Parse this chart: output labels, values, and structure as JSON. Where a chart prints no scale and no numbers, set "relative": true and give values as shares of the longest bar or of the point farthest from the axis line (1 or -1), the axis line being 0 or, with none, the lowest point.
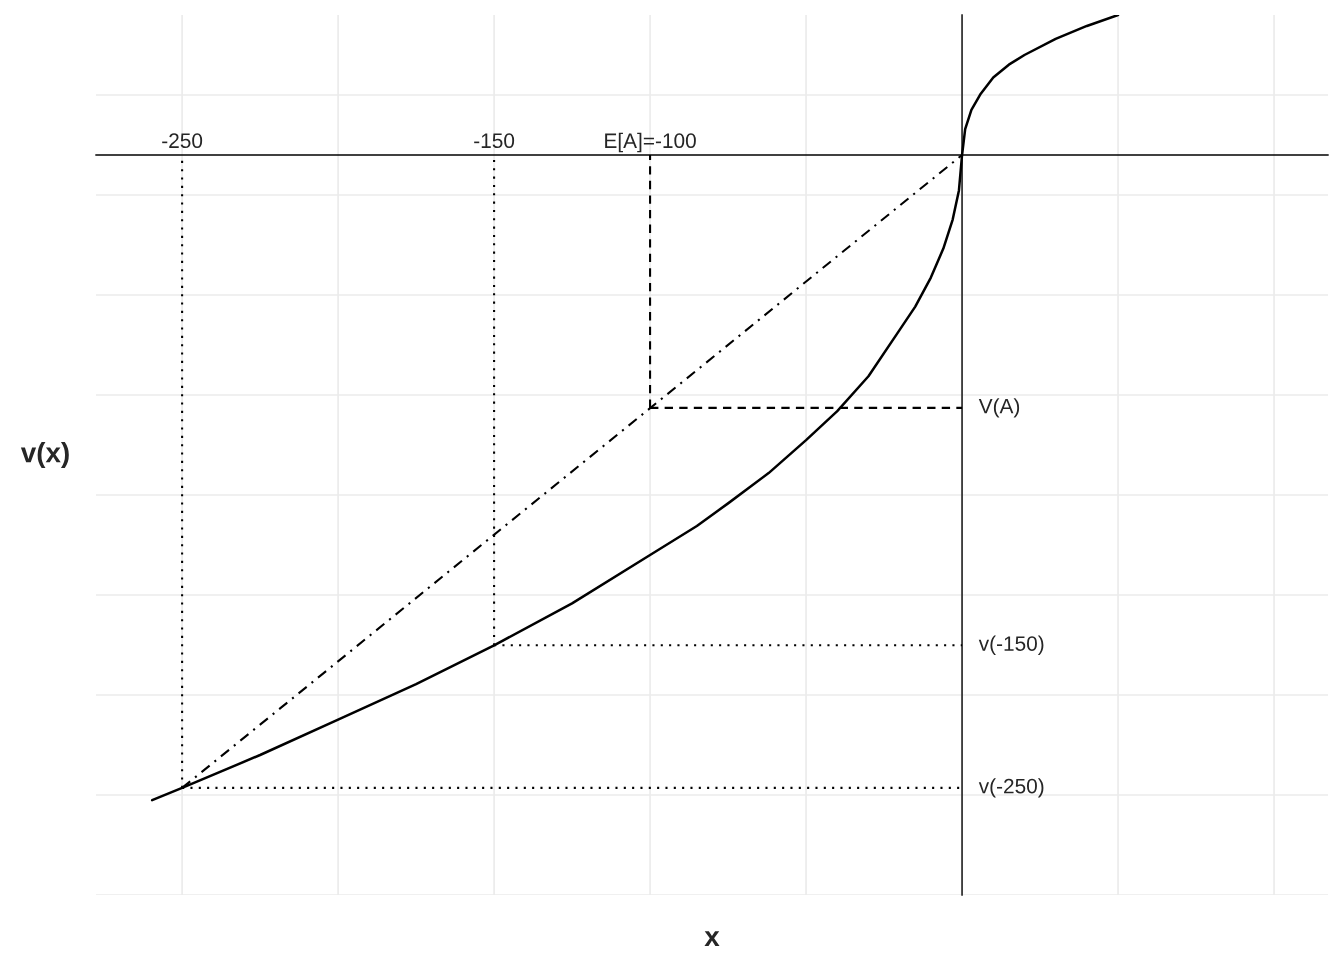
{
  "chart_data": {
    "type": "line",
    "relative": true,
    "xlabel": "x",
    "ylabel": "v(x)",
    "xlim": [
      -277.6,
      117.3
    ],
    "xticks": [
      {
        "value": -250,
        "label": "-250"
      },
      {
        "value": -200,
        "label": null
      },
      {
        "value": -150,
        "label": "-150"
      },
      {
        "value": -100,
        "label": "E[A]=-100"
      },
      {
        "value": -50,
        "label": null
      },
      {
        "value": 0,
        "label": null
      },
      {
        "value": 50,
        "label": null
      },
      {
        "value": 100,
        "label": null
      }
    ],
    "tick_labels": "x",
    "grid": true,
    "legend": false,
    "series": [
      {
        "color": "#000000",
        "line_style": "solid",
        "x": [
          -259.6,
          -250,
          -225,
          -200,
          -175,
          -150,
          -125,
          -100,
          -85,
          -75,
          -62,
          -50,
          -40,
          -30,
          -20,
          -15,
          -10,
          -6,
          -3,
          -1,
          0,
          1,
          3,
          6,
          10,
          15,
          20,
          30,
          40,
          50
        ],
        "values": [
          -1,
          -0.981,
          -0.93,
          -0.875,
          -0.82,
          -0.76,
          -0.695,
          -0.62,
          -0.575,
          -0.54,
          -0.493,
          -0.442,
          -0.397,
          -0.343,
          -0.271,
          -0.235,
          -0.19,
          -0.145,
          -0.1,
          -0.055,
          0,
          0.04,
          0.07,
          0.095,
          0.12,
          0.14,
          0.155,
          0.18,
          0.2,
          0.217
        ]
      },
      {
        "color": "#000000",
        "line_style": "dashdot",
        "x": [
          -250,
          0
        ],
        "values": [
          -0.981,
          0
        ]
      },
      {
        "color": "#000000",
        "line_style": "dotted",
        "x": [
          -250,
          -250
        ],
        "values": [
          -0.981,
          0
        ]
      },
      {
        "name": "v(-250)",
        "color": "#000000",
        "line_style": "dotted",
        "x": [
          -250,
          0
        ],
        "values": [
          -0.981,
          -0.981
        ]
      },
      {
        "color": "#000000",
        "line_style": "dotted",
        "x": [
          -150,
          -150
        ],
        "values": [
          -0.76,
          0
        ]
      },
      {
        "name": "v(-150)",
        "color": "#000000",
        "line_style": "dotted",
        "x": [
          -150,
          0
        ],
        "values": [
          -0.76,
          -0.76
        ]
      },
      {
        "color": "#000000",
        "line_style": "dashed",
        "x": [
          -100,
          -100
        ],
        "values": [
          -0.392,
          0
        ]
      },
      {
        "name": "V(A)",
        "color": "#000000",
        "line_style": "dashed",
        "x": [
          -100,
          0
        ],
        "values": [
          -0.392,
          -0.392
        ]
      }
    ]
  }
}
